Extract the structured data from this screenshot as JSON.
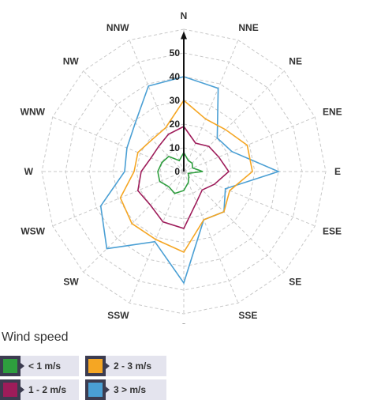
{
  "chart_data": {
    "type": "radar",
    "title": "",
    "directions": [
      "N",
      "NNE",
      "NE",
      "ENE",
      "E",
      "ESE",
      "SE",
      "SSE",
      "S",
      "SSW",
      "SW",
      "WSW",
      "W",
      "WNW",
      "NW",
      "NNW"
    ],
    "radial_ticks": [
      0,
      10,
      20,
      30,
      40,
      50
    ],
    "rlim": [
      0,
      60
    ],
    "stacked": true,
    "grid": true,
    "legend_position": "bottom-left",
    "series": [
      {
        "name": "< 1 m/s",
        "color": "#2e9e3e",
        "values": [
          8,
          5,
          5,
          4,
          8,
          2,
          3,
          5,
          8,
          10,
          9,
          11,
          11,
          10,
          9,
          5
        ]
      },
      {
        "name": "1 - 2 m/s",
        "color": "#9e1c5a",
        "values": [
          19,
          13,
          15,
          16,
          19,
          14,
          11,
          14,
          24,
          23,
          20,
          21,
          18,
          15,
          15,
          17
        ]
      },
      {
        "name": "2 - 3 m/s",
        "color": "#f5a623",
        "values": [
          30,
          24,
          25,
          29,
          29,
          21,
          24,
          22,
          34,
          31,
          31,
          29,
          21,
          21,
          19,
          20
        ]
      },
      {
        "name": "3 > m/s",
        "color": "#4a9fd4",
        "values": [
          40,
          38,
          20,
          22,
          40,
          19,
          24,
          22,
          47,
          32,
          46,
          38,
          25,
          26,
          29,
          39
        ]
      }
    ]
  },
  "legend": {
    "title": "Wind speed",
    "items": [
      {
        "label": "< 1 m/s",
        "color": "#2e9e3e"
      },
      {
        "label": "2 - 3 m/s",
        "color": "#f5a623"
      },
      {
        "label": "1 - 2 m/s",
        "color": "#9e1c5a"
      },
      {
        "label": "3 > m/s",
        "color": "#4a9fd4"
      }
    ]
  }
}
